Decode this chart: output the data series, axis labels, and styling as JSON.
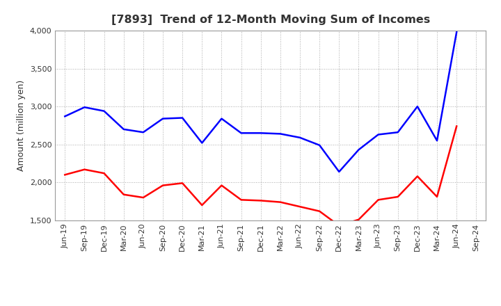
{
  "title": "[7893]  Trend of 12-Month Moving Sum of Incomes",
  "ylabel": "Amount (million yen)",
  "ylim": [
    1500,
    4000
  ],
  "yticks": [
    1500,
    2000,
    2500,
    3000,
    3500,
    4000
  ],
  "x_labels": [
    "Jun-19",
    "Sep-19",
    "Dec-19",
    "Mar-20",
    "Jun-20",
    "Sep-20",
    "Dec-20",
    "Mar-21",
    "Jun-21",
    "Sep-21",
    "Dec-21",
    "Mar-22",
    "Jun-22",
    "Sep-22",
    "Dec-22",
    "Mar-23",
    "Jun-23",
    "Sep-23",
    "Dec-23",
    "Mar-24",
    "Jun-24",
    "Sep-24"
  ],
  "ordinary_income": [
    2870,
    2990,
    2940,
    2700,
    2660,
    2840,
    2850,
    2520,
    2840,
    2650,
    2650,
    2640,
    2590,
    2490,
    2140,
    2430,
    2630,
    2660,
    3000,
    2550,
    3980,
    null
  ],
  "net_income": [
    2100,
    2170,
    2120,
    1840,
    1800,
    1960,
    1990,
    1700,
    1960,
    1770,
    1760,
    1740,
    1680,
    1620,
    1430,
    1510,
    1770,
    1810,
    2080,
    1810,
    2740,
    null
  ],
  "ordinary_color": "#0000ff",
  "net_color": "#ff0000",
  "background_color": "#ffffff",
  "grid_color": "#aaaaaa",
  "title_color": "#333333",
  "line_width": 1.8,
  "title_fontsize": 11.5,
  "label_fontsize": 9,
  "tick_fontsize": 8,
  "legend_fontsize": 9.5
}
